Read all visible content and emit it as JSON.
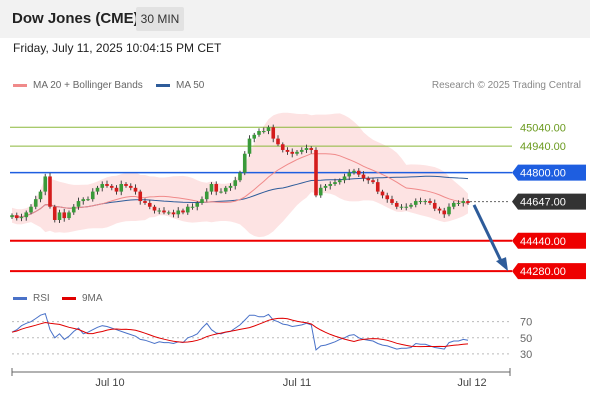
{
  "header": {
    "title": "Dow Jones (CME)",
    "timeframe": "30 MIN"
  },
  "datetime": "Friday, July 11, 2025 10:04:15 PM CET",
  "legend": {
    "ma20": "MA 20 + Bollinger Bands",
    "ma20_color": "#f08a8a",
    "ma50": "MA 50",
    "ma50_color": "#2e5c9a"
  },
  "credit": "Research © 2025 Trading Central",
  "rsi_legend": {
    "rsi": "RSI",
    "rsi_color": "#4a72c8",
    "ma": "9MA",
    "ma_color": "#e00000"
  },
  "chart_data": {
    "type": "candlestick",
    "x_ticks": [
      "Jul 10",
      "Jul 11",
      "Jul 12"
    ],
    "price_levels": [
      {
        "label": "45040.00",
        "value": 45040,
        "color": "#8bb83a",
        "role": "resistance"
      },
      {
        "label": "44940.00",
        "value": 44940,
        "color": "#8bb83a",
        "role": "resistance"
      },
      {
        "label": "44800.00",
        "value": 44800,
        "color": "#1e5ee0",
        "role": "pivot"
      },
      {
        "label": "44647.00",
        "value": 44647,
        "color": "#333333",
        "role": "last"
      },
      {
        "label": "44440.00",
        "value": 44440,
        "color": "#ee0000",
        "role": "support"
      },
      {
        "label": "44280.00",
        "value": 44280,
        "color": "#ee0000",
        "role": "support"
      }
    ],
    "price_range": [
      44254,
      45184
    ],
    "close": [
      44575,
      44560,
      44565,
      44590,
      44620,
      44660,
      44700,
      44780,
      44620,
      44550,
      44590,
      44560,
      44590,
      44620,
      44650,
      44660,
      44660,
      44700,
      44720,
      44740,
      44730,
      44720,
      44700,
      44740,
      44730,
      44720,
      44700,
      44650,
      44640,
      44620,
      44600,
      44600,
      44590,
      44590,
      44580,
      44600,
      44590,
      44620,
      44620,
      44640,
      44660,
      44700,
      44740,
      44700,
      44700,
      44720,
      44730,
      44760,
      44800,
      44900,
      44980,
      45000,
      45020,
      45020,
      45040,
      44980,
      44950,
      44920,
      44910,
      44900,
      44910,
      44920,
      44930,
      44920,
      44680,
      44720,
      44730,
      44740,
      44750,
      44760,
      44780,
      44800,
      44810,
      44790,
      44770,
      44760,
      44750,
      44700,
      44680,
      44660,
      44640,
      44620,
      44620,
      44620,
      44630,
      44650,
      44650,
      44650,
      44640,
      44610,
      44600,
      44580,
      44620,
      44640,
      44640,
      44650,
      44640
    ],
    "rsi_levels": [
      70,
      50,
      30
    ],
    "rsi_range": [
      20,
      82
    ],
    "rsi": [
      57,
      60,
      65,
      68,
      70,
      74,
      78,
      80,
      60,
      50,
      55,
      48,
      52,
      58,
      62,
      55,
      57,
      60,
      63,
      65,
      64,
      62,
      60,
      58,
      56,
      54,
      52,
      48,
      47,
      45,
      43,
      45,
      44,
      44,
      43,
      45,
      44,
      50,
      52,
      55,
      62,
      68,
      60,
      56,
      55,
      57,
      58,
      62,
      66,
      72,
      78,
      78,
      76,
      76,
      79,
      72,
      70,
      67,
      66,
      64,
      65,
      66,
      68,
      66,
      35,
      40,
      41,
      43,
      45,
      48,
      50,
      53,
      54,
      50,
      48,
      47,
      46,
      43,
      41,
      40,
      38,
      36,
      37,
      37,
      38,
      43,
      42,
      42,
      40,
      38,
      37,
      36,
      44,
      46,
      46,
      48,
      47
    ]
  }
}
